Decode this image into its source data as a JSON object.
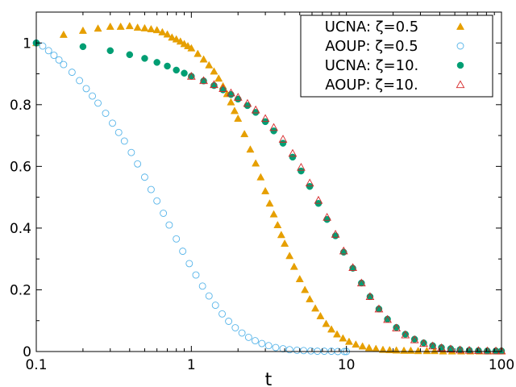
{
  "chart_data": {
    "type": "scatter",
    "title": "",
    "xlabel": "t",
    "ylabel": "",
    "xscale": "log",
    "xlim": [
      0.1,
      100
    ],
    "ylim": [
      0,
      1.1
    ],
    "grid": false,
    "legend_position": "top-right",
    "x_ticks": [
      {
        "value": 0.1,
        "label": "0.1"
      },
      {
        "value": 1,
        "label": "1"
      },
      {
        "value": 10,
        "label": "10"
      },
      {
        "value": 100,
        "label": "100"
      }
    ],
    "y_ticks": [
      {
        "value": 0,
        "label": "0"
      },
      {
        "value": 0.2,
        "label": "0.2"
      },
      {
        "value": 0.4,
        "label": "0.4"
      },
      {
        "value": 0.6,
        "label": "0.6"
      },
      {
        "value": 0.8,
        "label": "0.8"
      },
      {
        "value": 1,
        "label": "1"
      }
    ],
    "series": [
      {
        "name": "UCNA: ζ=0.5",
        "marker": "triangle-filled",
        "color": "#E69F00",
        "x": [
          0.1,
          0.15,
          0.2,
          0.25,
          0.3,
          0.35,
          0.4,
          0.45,
          0.5,
          0.55,
          0.6,
          0.65,
          0.7,
          0.75,
          0.8,
          0.85,
          0.9,
          0.95,
          1.0,
          1.1,
          1.2,
          1.3,
          1.4,
          1.5,
          1.6,
          1.7,
          1.8,
          1.9,
          2.0,
          2.2,
          2.4,
          2.6,
          2.8,
          3.0,
          3.2,
          3.4,
          3.6,
          3.8,
          4.0,
          4.3,
          4.6,
          5.0,
          5.4,
          5.8,
          6.3,
          6.8,
          7.4,
          8.0,
          8.7,
          9.5,
          10.4,
          11.5,
          12.7,
          14.0,
          15.5,
          17.2,
          19.0,
          21.0,
          23.5,
          26.0,
          29.0,
          33.0,
          37.0,
          42.0,
          48.0,
          55.0,
          63.0,
          72.0,
          82.0,
          93.0,
          100.0
        ],
        "y": [
          1.0,
          1.027,
          1.04,
          1.047,
          1.053,
          1.053,
          1.055,
          1.05,
          1.048,
          1.045,
          1.042,
          1.035,
          1.028,
          1.018,
          1.012,
          1.005,
          0.997,
          0.99,
          0.983,
          0.965,
          0.947,
          0.928,
          0.908,
          0.885,
          0.86,
          0.835,
          0.808,
          0.78,
          0.755,
          0.705,
          0.655,
          0.61,
          0.565,
          0.52,
          0.48,
          0.445,
          0.41,
          0.378,
          0.35,
          0.31,
          0.275,
          0.235,
          0.2,
          0.17,
          0.14,
          0.115,
          0.09,
          0.072,
          0.056,
          0.043,
          0.032,
          0.023,
          0.017,
          0.012,
          0.009,
          0.006,
          0.005,
          0.004,
          0.003,
          0.003,
          0.002,
          0.002,
          0.002,
          0.001,
          0.001,
          0.001,
          0.001,
          0.001,
          0.001,
          0.001,
          0.001
        ]
      },
      {
        "name": "AOUP: ζ=0.5",
        "marker": "circle-open",
        "color": "#56B4E9",
        "x": [
          0.1,
          0.11,
          0.12,
          0.13,
          0.14,
          0.15,
          0.17,
          0.19,
          0.21,
          0.23,
          0.25,
          0.28,
          0.31,
          0.34,
          0.37,
          0.41,
          0.45,
          0.5,
          0.55,
          0.6,
          0.66,
          0.72,
          0.8,
          0.88,
          0.97,
          1.07,
          1.18,
          1.3,
          1.43,
          1.58,
          1.74,
          1.92,
          2.12,
          2.34,
          2.58,
          2.85,
          3.15,
          3.5,
          3.9,
          4.3,
          4.8,
          5.3,
          5.9,
          6.5,
          7.2,
          8.0,
          8.8,
          9.7,
          10.0
        ],
        "y": [
          1.0,
          0.99,
          0.975,
          0.96,
          0.945,
          0.93,
          0.905,
          0.878,
          0.852,
          0.828,
          0.805,
          0.772,
          0.74,
          0.71,
          0.682,
          0.645,
          0.608,
          0.565,
          0.525,
          0.488,
          0.448,
          0.41,
          0.365,
          0.325,
          0.285,
          0.248,
          0.212,
          0.18,
          0.15,
          0.122,
          0.098,
          0.077,
          0.06,
          0.046,
          0.035,
          0.026,
          0.019,
          0.013,
          0.009,
          0.006,
          0.004,
          0.003,
          0.002,
          0.001,
          0.001,
          0.001,
          0.0,
          0.0,
          0.0
        ]
      },
      {
        "name": "UCNA: ζ=10.",
        "marker": "circle-filled",
        "color": "#009E73",
        "x": [
          0.1,
          0.2,
          0.3,
          0.4,
          0.5,
          0.6,
          0.7,
          0.8,
          0.9,
          1.0,
          1.2,
          1.4,
          1.6,
          1.8,
          2.0,
          2.3,
          2.6,
          3.0,
          3.4,
          3.9,
          4.5,
          5.1,
          5.8,
          6.6,
          7.5,
          8.5,
          9.6,
          11.0,
          12.5,
          14.2,
          16.2,
          18.4,
          21.0,
          24.0,
          27.5,
          31.5,
          36.0,
          41.0,
          47.0,
          54.0,
          62.0,
          71.0,
          81.0,
          92.0,
          100.0
        ],
        "y": [
          1.0,
          0.988,
          0.975,
          0.962,
          0.95,
          0.937,
          0.925,
          0.912,
          0.902,
          0.892,
          0.877,
          0.862,
          0.848,
          0.833,
          0.818,
          0.797,
          0.775,
          0.745,
          0.715,
          0.675,
          0.63,
          0.585,
          0.535,
          0.48,
          0.428,
          0.375,
          0.322,
          0.27,
          0.222,
          0.178,
          0.138,
          0.105,
          0.078,
          0.056,
          0.04,
          0.028,
          0.019,
          0.013,
          0.009,
          0.006,
          0.004,
          0.003,
          0.002,
          0.002,
          0.002
        ]
      },
      {
        "name": "AOUP: ζ=10.",
        "marker": "triangle-open",
        "color": "#D62728",
        "x": [
          1.0,
          1.2,
          1.4,
          1.6,
          1.8,
          2.0,
          2.3,
          2.6,
          3.0,
          3.4,
          3.9,
          4.5,
          5.1,
          5.8,
          6.6,
          7.5,
          8.5,
          9.6,
          11.0,
          12.5,
          14.2,
          16.2,
          18.4,
          21.0,
          24.0,
          27.5,
          31.5,
          36.0,
          41.0,
          47.0,
          54.0,
          62.0,
          71.0,
          81.0,
          92.0,
          100.0
        ],
        "y": [
          0.892,
          0.878,
          0.865,
          0.852,
          0.838,
          0.824,
          0.804,
          0.783,
          0.755,
          0.726,
          0.688,
          0.642,
          0.597,
          0.546,
          0.49,
          0.435,
          0.38,
          0.326,
          0.272,
          0.222,
          0.178,
          0.138,
          0.104,
          0.076,
          0.054,
          0.038,
          0.026,
          0.018,
          0.012,
          0.008,
          0.005,
          0.004,
          0.003,
          0.002,
          0.002,
          0.002
        ]
      }
    ]
  }
}
